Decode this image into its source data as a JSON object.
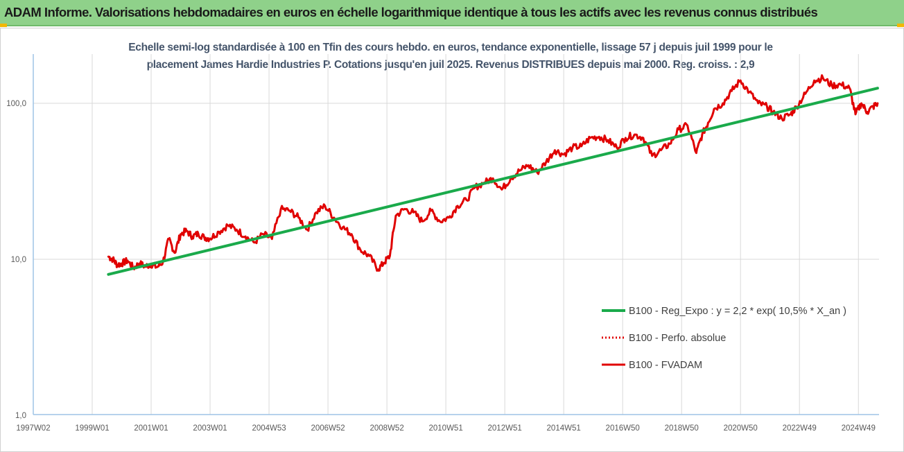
{
  "header": {
    "title": "ADAM Informe. Valorisations hebdomadaires en euros en échelle logarithmique identique à tous les actifs avec les revenus connus distribués",
    "banner_color": "#8fd18a",
    "corner_mark_color": "#f2b705"
  },
  "chart_data": {
    "type": "line",
    "title_lines": [
      "Echelle semi-log standardisée à 100 en Tfin des cours hebdo. en euros, tendance exponentielle, lissage 57 j depuis juil 1999 pour le",
      "placement James Hardie Industries P. Cotations jusqu'en juil 2025. Revenus DISTRIBUES depuis mai 2000. Reg. croiss. : 2,9"
    ],
    "y_scale": "log",
    "ylim": [
      1,
      200
    ],
    "y_ticks": [
      1,
      10,
      100
    ],
    "y_tick_labels": [
      "1,0",
      "10,0",
      "100,0"
    ],
    "xlim": [
      1997.0,
      2025.7
    ],
    "x_ticks": [
      1997.0,
      1999.0,
      2001.0,
      2003.0,
      2005.0,
      2007.0,
      2009.0,
      2011.0,
      2013.0,
      2015.0,
      2017.0,
      2019.0,
      2021.0,
      2023.0,
      2025.0
    ],
    "x_tick_labels": [
      "1997W02",
      "1999W01",
      "2001W01",
      "2003W01",
      "2004W53",
      "2006W52",
      "2008W52",
      "2010W51",
      "2012W51",
      "2014W51",
      "2016W50",
      "2018W50",
      "2020W50",
      "2022W49",
      "2024W49"
    ],
    "grid": "vertical",
    "legend_position": "right",
    "colors": {
      "trend": "#1aaa4b",
      "perfo": "#e00000",
      "fvadam": "#e00000",
      "axis": "#9dc3e6",
      "grid": "#d9d9d9"
    },
    "series": [
      {
        "name": "B100 - Reg_Expo : y = 2,2 * exp( 10,5% *  X_an )",
        "style": "solid-green",
        "x": [
          1999.55,
          2025.65
        ],
        "y": [
          8.0,
          125.0
        ]
      },
      {
        "name": "B100 - Perfo. absolue",
        "style": "dotted-red",
        "x": [],
        "y": []
      },
      {
        "name": "B100 - FVADAM",
        "style": "solid-red",
        "x": [
          1999.55,
          1999.7,
          1999.85,
          2000.0,
          2000.2,
          2000.4,
          2000.6,
          2000.8,
          2001.0,
          2001.2,
          2001.4,
          2001.6,
          2001.8,
          2002.0,
          2002.2,
          2002.4,
          2002.6,
          2002.8,
          2003.0,
          2003.3,
          2003.6,
          2003.9,
          2004.2,
          2004.5,
          2004.8,
          2005.1,
          2005.4,
          2005.7,
          2006.0,
          2006.3,
          2006.6,
          2006.9,
          2007.2,
          2007.5,
          2007.8,
          2008.1,
          2008.4,
          2008.7,
          2008.9,
          2009.1,
          2009.3,
          2009.6,
          2009.9,
          2010.2,
          2010.5,
          2010.8,
          2011.1,
          2011.4,
          2011.7,
          2012.0,
          2012.3,
          2012.6,
          2012.9,
          2013.2,
          2013.5,
          2013.8,
          2014.1,
          2014.4,
          2014.7,
          2015.0,
          2015.3,
          2015.6,
          2015.9,
          2016.2,
          2016.5,
          2016.8,
          2017.1,
          2017.4,
          2017.7,
          2018.0,
          2018.3,
          2018.6,
          2018.9,
          2019.2,
          2019.5,
          2019.7,
          2019.9,
          2020.1,
          2020.4,
          2020.7,
          2021.0,
          2021.3,
          2021.6,
          2021.9,
          2022.1,
          2022.4,
          2022.7,
          2022.9,
          2023.2,
          2023.5,
          2023.8,
          2024.1,
          2024.4,
          2024.7,
          2024.9,
          2025.1,
          2025.3,
          2025.5,
          2025.65
        ],
        "y": [
          10.4,
          10.0,
          9.2,
          9.4,
          9.8,
          8.8,
          9.4,
          9.0,
          9.3,
          8.9,
          9.6,
          13.5,
          11.0,
          14.5,
          15.2,
          14.0,
          14.6,
          13.8,
          13.6,
          15.0,
          16.5,
          15.5,
          14.0,
          12.8,
          14.5,
          13.5,
          21.0,
          20.5,
          18.5,
          15.5,
          20.0,
          22.0,
          18.5,
          16.0,
          14.5,
          11.5,
          10.5,
          8.6,
          9.5,
          10.5,
          19.0,
          21.0,
          20.0,
          17.5,
          20.5,
          17.5,
          18.5,
          22.0,
          24.0,
          29.0,
          31.0,
          33.0,
          28.0,
          33.0,
          37.0,
          40.0,
          36.0,
          42.0,
          50.0,
          47.0,
          52.0,
          53.0,
          60.0,
          61.0,
          58.0,
          52.0,
          60.0,
          63.0,
          60.0,
          46.0,
          50.0,
          55.0,
          68.0,
          72.0,
          48.0,
          63.0,
          75.0,
          92.0,
          100.0,
          120.0,
          140.0,
          118.0,
          100.0,
          95.0,
          88.0,
          80.0,
          85.0,
          95.0,
          115.0,
          140.0,
          145.0,
          130.0,
          132.0,
          125.0,
          85.0,
          100.0,
          88.0,
          95.0,
          100.0
        ]
      }
    ]
  }
}
